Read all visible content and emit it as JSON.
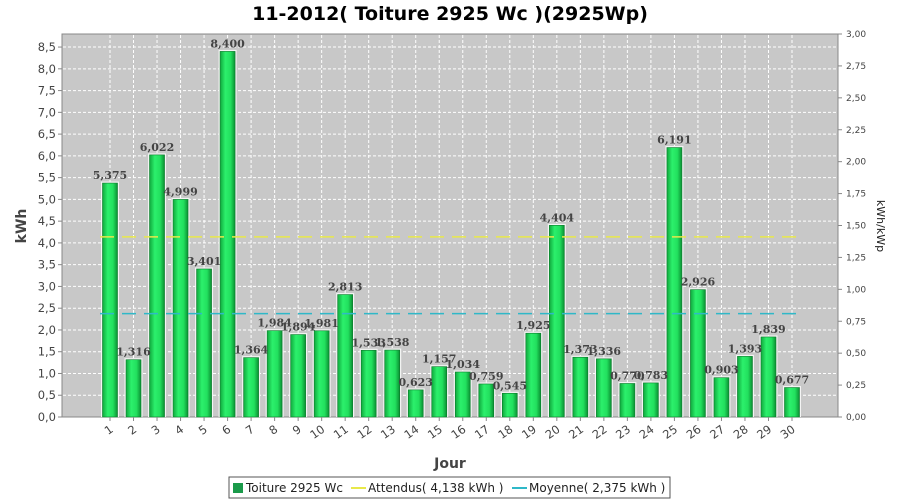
{
  "chart_data": {
    "type": "bar",
    "title": "11-2012( Toiture 2925 Wc )(2925Wp)",
    "xlabel": "Jour",
    "ylabel": "kWh",
    "ylabel_right": "kWh/kWp",
    "ylim": [
      0,
      8.8
    ],
    "ylim_right": [
      0,
      3.0
    ],
    "yticks": [
      "0,0",
      "0,5",
      "1,0",
      "1,5",
      "2,0",
      "2,5",
      "3,0",
      "3,5",
      "4,0",
      "4,5",
      "5,0",
      "5,5",
      "6,0",
      "6,5",
      "7,0",
      "7,5",
      "8,0",
      "8,5"
    ],
    "yticks_right": [
      "0,00",
      "0,25",
      "0,50",
      "0,75",
      "1,00",
      "1,25",
      "1,50",
      "1,75",
      "2,00",
      "2,25",
      "2,50",
      "2,75",
      "3,00"
    ],
    "categories": [
      "1",
      "2",
      "3",
      "4",
      "5",
      "6",
      "7",
      "8",
      "9",
      "10",
      "11",
      "12",
      "13",
      "14",
      "15",
      "16",
      "17",
      "18",
      "19",
      "20",
      "21",
      "22",
      "23",
      "24",
      "25",
      "26",
      "27",
      "28",
      "29",
      "30"
    ],
    "series": [
      {
        "name": "Toiture 2925 Wc",
        "color": "#1ed760",
        "values": [
          5.375,
          1.316,
          6.022,
          4.999,
          3.401,
          8.4,
          1.364,
          1.984,
          1.894,
          1.981,
          2.813,
          1.533,
          1.538,
          0.623,
          1.157,
          1.034,
          0.759,
          0.545,
          1.925,
          4.404,
          1.373,
          1.336,
          0.77,
          0.783,
          6.191,
          2.926,
          0.903,
          1.393,
          1.839,
          0.677
        ],
        "labels": [
          "5,375",
          "1,316",
          "6,022",
          "4,999",
          "3,401",
          "8,400",
          "1,364",
          "1,984",
          "1,894",
          "1,981",
          "2,813",
          "1,533",
          "1,538",
          "0,623",
          "1,157",
          "1,034",
          "0,759",
          "0,545",
          "1,925",
          "4,404",
          "1,373",
          "1,336",
          "0,770",
          "0,783",
          "6,191",
          "2,926",
          "0,903",
          "1,393",
          "1,839",
          "0,677"
        ]
      }
    ],
    "reference_lines": [
      {
        "name": "Attendus( 4,138 kWh )",
        "value": 4.138,
        "color": "#e8e84a",
        "style": "dashed"
      },
      {
        "name": "Moyenne( 2,375 kWh )",
        "value": 2.375,
        "color": "#2fb8c8",
        "style": "dashed"
      }
    ],
    "grid": true,
    "legend_position": "bottom"
  },
  "legend": {
    "items": [
      {
        "label": "Toiture 2925 Wc",
        "symbol": "square",
        "color": "#1a9a4a"
      },
      {
        "label": "Attendus( 4,138 kWh )",
        "symbol": "line",
        "color": "#e8e84a"
      },
      {
        "label": "Moyenne( 2,375 kWh )",
        "symbol": "line",
        "color": "#2fb8c8"
      }
    ]
  }
}
